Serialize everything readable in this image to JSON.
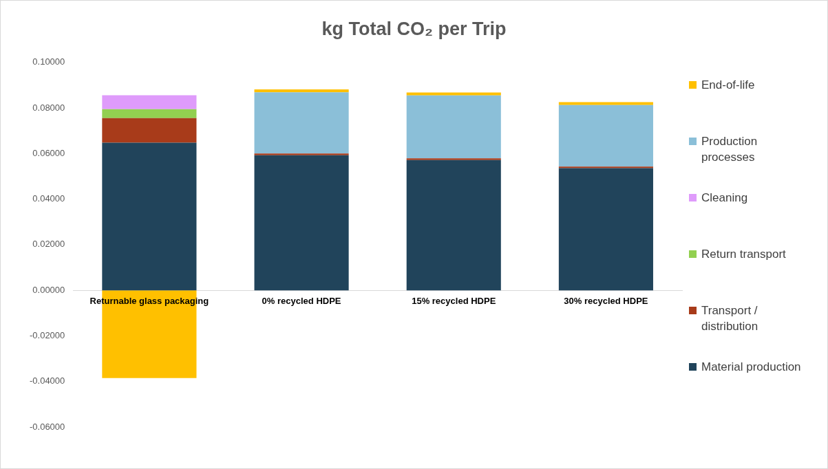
{
  "chart_data": {
    "type": "bar",
    "title": "kg Total CO₂ per Trip",
    "stacked": true,
    "legend": "right",
    "grid": false,
    "categories": [
      "Returnable glass packaging",
      "0% recycled HDPE",
      "15% recycled HDPE",
      "30% recycled HDPE"
    ],
    "ylim": [
      -0.06,
      0.1
    ],
    "yticks": [
      {
        "value": -0.06,
        "label": "-0.06000"
      },
      {
        "value": -0.04,
        "label": "-0.04000"
      },
      {
        "value": -0.02,
        "label": "-0.02000"
      },
      {
        "value": 0,
        "label": "0.00000"
      },
      {
        "value": 0.02,
        "label": "0.02000"
      },
      {
        "value": 0.04,
        "label": "0.04000"
      },
      {
        "value": 0.06,
        "label": "0.06000"
      },
      {
        "value": 0.08,
        "label": "0.08000"
      },
      {
        "value": 0.1,
        "label": "0.10000"
      }
    ],
    "series": [
      {
        "name": "Material production",
        "color": "#21445b",
        "values": [
          0.0648,
          0.0593,
          0.0572,
          0.0536
        ]
      },
      {
        "name": "Transport / distribution",
        "color": "#a83b1a",
        "values": [
          0.0108,
          0.0007,
          0.0007,
          0.0007
        ]
      },
      {
        "name": "Return transport",
        "color": "#92d050",
        "values": [
          0.0039,
          null,
          null,
          null
        ]
      },
      {
        "name": "Cleaning",
        "color": "#df9bfb",
        "values": [
          0.0061,
          null,
          null,
          null
        ]
      },
      {
        "name": "Production processes",
        "color": "#8bbfd8",
        "values": [
          null,
          0.0269,
          0.0276,
          0.027
        ]
      },
      {
        "name": "End-of-life",
        "color": "#ffc000",
        "values": [
          -0.0385,
          0.0013,
          0.0013,
          0.0013
        ]
      }
    ]
  }
}
